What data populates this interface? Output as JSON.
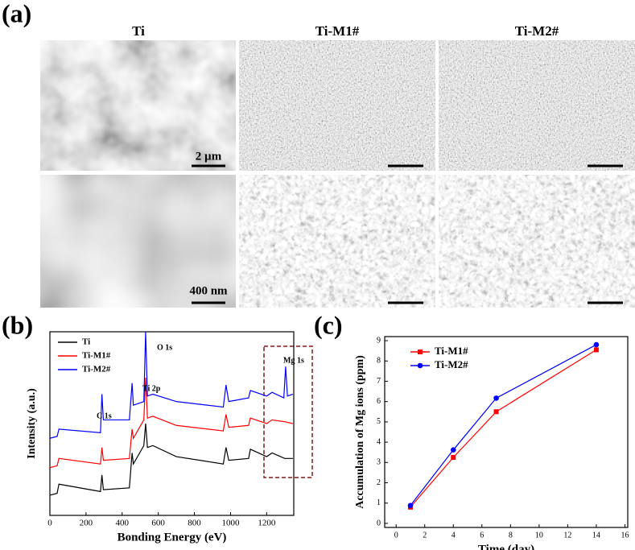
{
  "figure": {
    "panel_labels": [
      "(a)",
      "(b)",
      "(c)"
    ],
    "column_titles": [
      "Ti",
      "Ti-M1#",
      "Ti-M2#"
    ],
    "scale_bars": [
      "2 µm",
      "400 nm"
    ]
  },
  "chart_data": [
    {
      "type": "line",
      "x_label": "Bonding Energy (eV)",
      "y_label": "Intensity (a.u.)",
      "xlim": [
        0,
        1350
      ],
      "xticks": [
        0,
        200,
        400,
        600,
        800,
        1000,
        1200
      ],
      "ylim": [
        0,
        100
      ],
      "legend": "upper left",
      "annotations": [
        "C 1s",
        "Ti 2p",
        "O 1s",
        "Mg 1s"
      ],
      "series": [
        {
          "name": "Ti",
          "color": "#000000",
          "x": [
            0,
            40,
            50,
            280,
            288,
            296,
            440,
            455,
            462,
            520,
            530,
            540,
            570,
            700,
            960,
            975,
            990,
            1100,
            1110,
            1200,
            1230,
            1300,
            1345
          ],
          "values": [
            11,
            12,
            17,
            13,
            22,
            14,
            15,
            34,
            28,
            38,
            50,
            37,
            38,
            32,
            28,
            37,
            30,
            31,
            36,
            32,
            34,
            31,
            31
          ]
        },
        {
          "name": "Ti-M1#",
          "color": "#ff0000",
          "x": [
            0,
            40,
            50,
            280,
            288,
            296,
            440,
            455,
            462,
            520,
            530,
            540,
            570,
            700,
            960,
            975,
            990,
            1100,
            1110,
            1200,
            1230,
            1300,
            1345
          ],
          "values": [
            26,
            27,
            31,
            28,
            37,
            30,
            31,
            47,
            42,
            52,
            75,
            53,
            54,
            49,
            46,
            55,
            48,
            49,
            53,
            50,
            52,
            51,
            50
          ]
        },
        {
          "name": "Ti-M2#",
          "color": "#0000ff",
          "x": [
            0,
            40,
            50,
            280,
            288,
            296,
            440,
            455,
            462,
            520,
            530,
            540,
            570,
            700,
            960,
            975,
            990,
            1100,
            1110,
            1200,
            1230,
            1295,
            1305,
            1315,
            1345
          ],
          "values": [
            42,
            43,
            47,
            45,
            66,
            52,
            52,
            72,
            60,
            62,
            100,
            65,
            66,
            62,
            59,
            71,
            62,
            64,
            68,
            65,
            67,
            64,
            81,
            65,
            66
          ]
        }
      ]
    },
    {
      "type": "line",
      "x_label": "Time (day)",
      "y_label": "Accumulation of Mg ions (ppm)",
      "x": [
        1,
        4,
        7,
        14
      ],
      "xlim": [
        -0.8,
        16.2
      ],
      "xticks": [
        0,
        2,
        4,
        6,
        8,
        10,
        12,
        14,
        16
      ],
      "ylim": [
        -0.2,
        9.2
      ],
      "yticks": [
        0,
        1,
        2,
        3,
        4,
        5,
        6,
        7,
        8,
        9
      ],
      "legend": "upper left",
      "series": [
        {
          "name": "Ti-M1#",
          "color": "#ff0000",
          "marker": "square",
          "values": [
            0.8,
            3.25,
            5.5,
            8.55
          ]
        },
        {
          "name": "Ti-M2#",
          "color": "#0000ff",
          "marker": "circle",
          "values": [
            0.88,
            3.62,
            6.17,
            8.8
          ]
        }
      ]
    }
  ]
}
